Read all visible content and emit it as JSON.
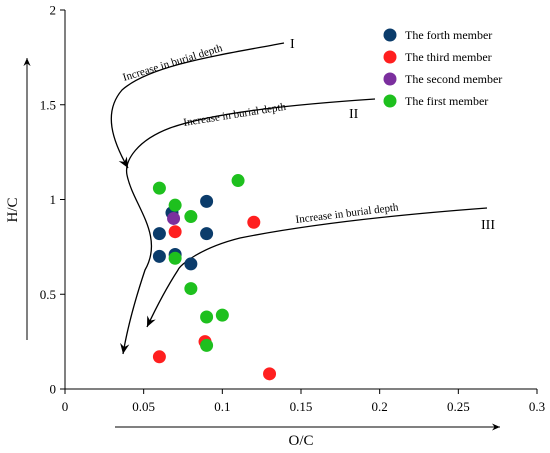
{
  "chart_data": {
    "type": "scatter",
    "xlabel": "O/C",
    "ylabel": "H/C",
    "xlim": [
      0,
      0.3
    ],
    "ylim": [
      0,
      2
    ],
    "x_ticks": [
      0,
      0.05,
      0.1,
      0.15,
      0.2,
      0.25,
      0.3
    ],
    "y_ticks": [
      0,
      0.5,
      1,
      1.5,
      2
    ],
    "x_tick_labels": [
      "0",
      "0.05",
      "0.1",
      "0.15",
      "0.2",
      "0.25",
      "0.3"
    ],
    "y_tick_labels": [
      "0",
      "0.5",
      "1",
      "1.5",
      "2"
    ],
    "legend_position": "top-right",
    "series": [
      {
        "name": "The forth member",
        "color": "#0b3c6b",
        "points": [
          [
            0.06,
            0.82
          ],
          [
            0.06,
            0.7
          ],
          [
            0.068,
            0.93
          ],
          [
            0.07,
            0.71
          ],
          [
            0.08,
            0.66
          ],
          [
            0.09,
            0.99
          ],
          [
            0.09,
            0.82
          ]
        ]
      },
      {
        "name": "The third member",
        "color": "#ff1f1f",
        "points": [
          [
            0.06,
            0.17
          ],
          [
            0.07,
            0.83
          ],
          [
            0.089,
            0.25
          ],
          [
            0.12,
            0.88
          ],
          [
            0.13,
            0.08
          ]
        ]
      },
      {
        "name": "The second member",
        "color": "#7b2f9e",
        "points": [
          [
            0.069,
            0.9
          ]
        ]
      },
      {
        "name": "The first member",
        "color": "#1ec01e",
        "points": [
          [
            0.06,
            1.06
          ],
          [
            0.07,
            0.97
          ],
          [
            0.07,
            0.69
          ],
          [
            0.08,
            0.91
          ],
          [
            0.08,
            0.53
          ],
          [
            0.09,
            0.38
          ],
          [
            0.09,
            0.23
          ],
          [
            0.1,
            0.39
          ],
          [
            0.11,
            1.1
          ]
        ]
      }
    ],
    "annotations": [
      {
        "id": "I",
        "text": "Increase in burial depth",
        "roman": "I"
      },
      {
        "id": "II",
        "text": "Increase in burial depth",
        "roman": "II"
      },
      {
        "id": "III",
        "text": "Increase in burial depth",
        "roman": "III"
      }
    ]
  }
}
